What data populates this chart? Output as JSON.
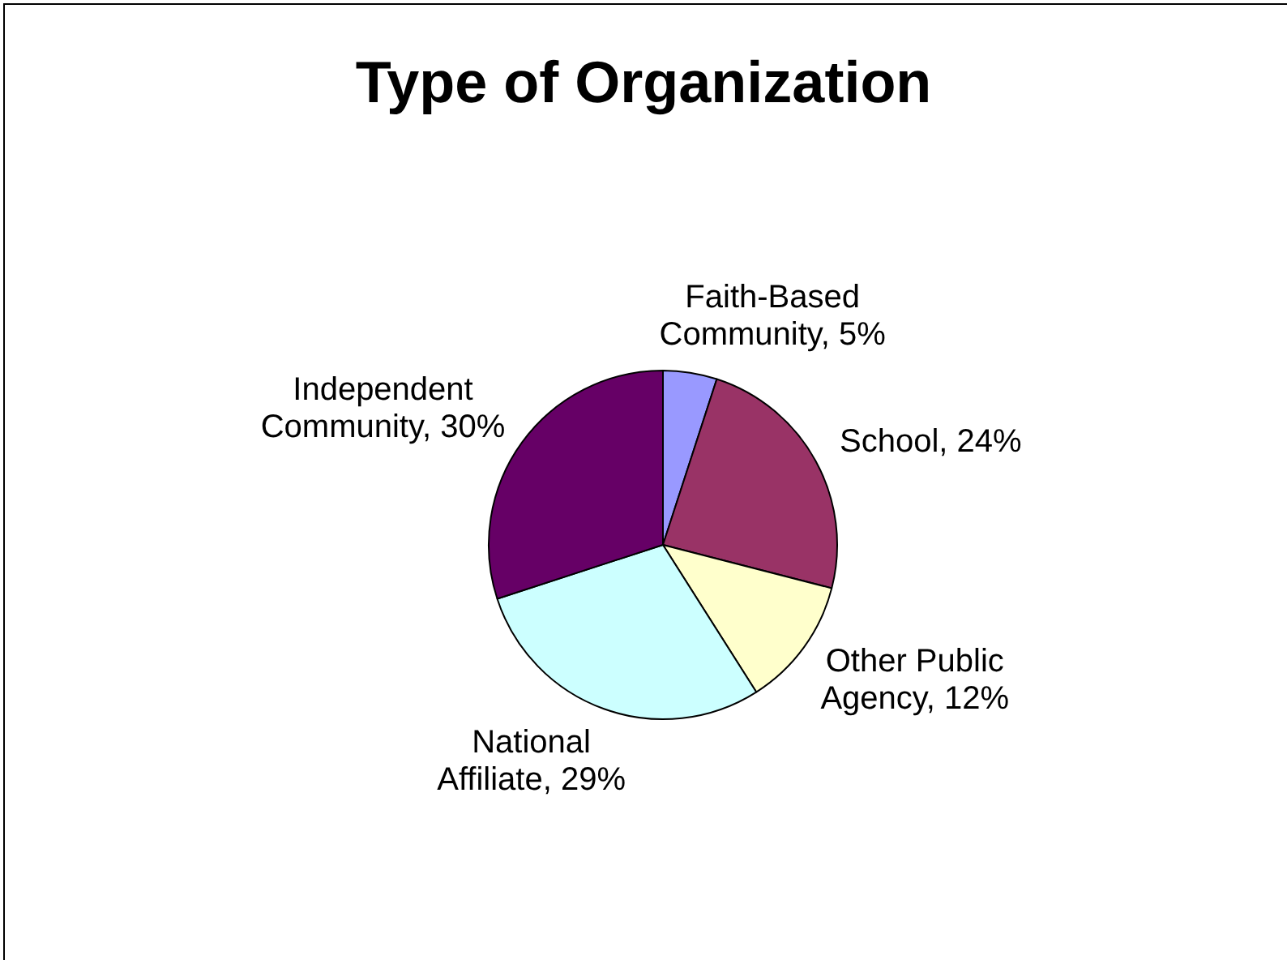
{
  "chart_data": {
    "type": "pie",
    "title": "Type of Organization",
    "categories": [
      "Faith-Based Community",
      "School",
      "Other Public Agency",
      "National Affiliate",
      "Independent Community"
    ],
    "values": [
      5,
      24,
      12,
      29,
      30
    ],
    "value_labels": [
      "5%",
      "24%",
      "12%",
      "29%",
      "30%"
    ],
    "colors": [
      "#9999ff",
      "#993366",
      "#ffffcc",
      "#ccffff",
      "#660066"
    ],
    "legend": false
  }
}
